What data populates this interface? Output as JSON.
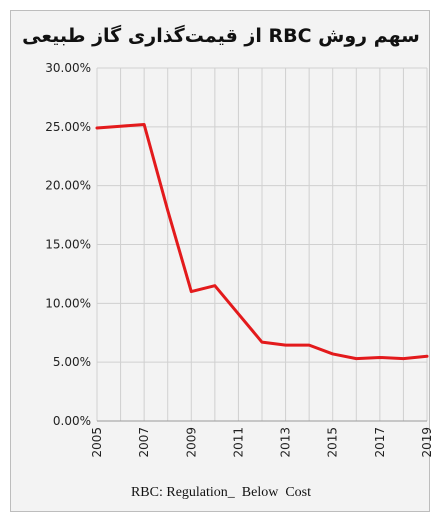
{
  "colors": {
    "series": "#e31a1c",
    "grid": "#d0d0d0",
    "axis": "#9a9a9a",
    "text": "#222222"
  },
  "chart_data": {
    "type": "line",
    "title": "سهم روش RBC از قیمت‌گذاری گاز طبیعی",
    "footnote": "RBC: Regulation_  Below  Cost",
    "x": [
      2005,
      2006,
      2007,
      2008,
      2009,
      2010,
      2011,
      2012,
      2013,
      2014,
      2015,
      2016,
      2017,
      2018,
      2019
    ],
    "x_tick_labels": [
      "2005",
      "2007",
      "2009",
      "2011",
      "2013",
      "2015",
      "2017",
      "2019"
    ],
    "x_tick_values": [
      2005,
      2007,
      2009,
      2011,
      2013,
      2015,
      2017,
      2019
    ],
    "y_tick_labels": [
      "0.00%",
      "5.00%",
      "10.00%",
      "15.00%",
      "20.00%",
      "25.00%",
      "30.00%"
    ],
    "y_tick_values": [
      0,
      5,
      10,
      15,
      20,
      25,
      30
    ],
    "ylim": [
      0,
      30
    ],
    "xlim": [
      2005,
      2019
    ],
    "grid": "vertical and horizontal",
    "series": [
      {
        "values": [
          24.9,
          25.05,
          25.2,
          17.9,
          11.0,
          11.5,
          9.1,
          6.7,
          6.45,
          6.45,
          5.7,
          5.3,
          5.4,
          5.3,
          5.5
        ]
      }
    ]
  }
}
